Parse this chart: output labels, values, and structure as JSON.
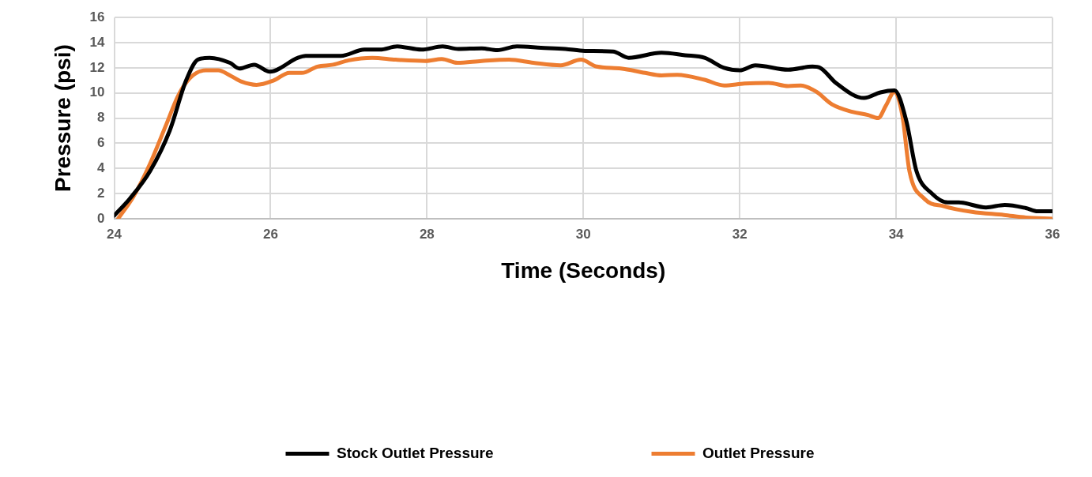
{
  "chart_data": {
    "type": "line",
    "xlabel": "Time (Seconds)",
    "ylabel": "Pressure (psi)",
    "xlim": [
      24,
      36
    ],
    "xticks": [
      24,
      26,
      28,
      30,
      32,
      34,
      36
    ],
    "ylim": [
      0,
      16
    ],
    "yticks": [
      0,
      2,
      4,
      6,
      8,
      10,
      12,
      14,
      16
    ],
    "grid": true,
    "legend": "bottom",
    "marker": "none",
    "line_style": "solid",
    "series": [
      {
        "name": "Stock Outlet Pressure",
        "color": "#000000",
        "x": [
          24,
          24.2,
          24.46,
          24.71,
          24.92,
          25.07,
          25.22,
          25.48,
          25.6,
          25.79,
          25.99,
          26.35,
          26.45,
          26.9,
          27.2,
          27.4,
          27.62,
          27.93,
          28.2,
          28.4,
          28.7,
          28.9,
          29.15,
          29.46,
          29.77,
          30.02,
          30.38,
          30.58,
          31,
          31.3,
          31.55,
          31.8,
          32,
          32.2,
          32.62,
          32.93,
          33.03,
          33.23,
          33.59,
          33.8,
          33.98,
          34.13,
          34.26,
          34.46,
          34.66,
          34.8,
          35.15,
          35.39,
          35.66,
          35.81,
          36
        ],
        "values": [
          0.25,
          1.6,
          3.8,
          7,
          11,
          12.65,
          12.8,
          12.4,
          11.95,
          12.25,
          11.7,
          12.8,
          12.95,
          12.95,
          13.45,
          13.45,
          13.7,
          13.45,
          13.7,
          13.5,
          13.55,
          13.4,
          13.7,
          13.6,
          13.5,
          13.35,
          13.3,
          12.8,
          13.2,
          13,
          12.8,
          12,
          11.8,
          12.2,
          11.85,
          12.1,
          12,
          10.8,
          9.6,
          10.05,
          10.2,
          7.8,
          3.8,
          2,
          1.3,
          1.3,
          0.9,
          1.1,
          0.85,
          0.6,
          0.6
        ]
      },
      {
        "name": "Outlet Pressure",
        "color": "#ed7d31",
        "x": [
          24.05,
          24.25,
          24.46,
          24.66,
          24.82,
          24.97,
          25.17,
          25.33,
          25.48,
          25.63,
          25.82,
          26.04,
          26.24,
          26.4,
          26.6,
          26.8,
          27,
          27.3,
          27.6,
          27.98,
          28.19,
          28.39,
          28.7,
          29.05,
          29.36,
          29.71,
          29.97,
          30.17,
          30.48,
          30.79,
          31,
          31.2,
          31.55,
          31.8,
          32.06,
          32.37,
          32.62,
          32.78,
          32.98,
          33.18,
          33.44,
          33.64,
          33.77,
          33.87,
          33.98,
          34.08,
          34.17,
          34.36,
          34.61,
          34.97,
          35.38,
          35.66,
          36
        ],
        "values": [
          0,
          1.8,
          4.4,
          7.4,
          9.8,
          11.2,
          11.8,
          11.8,
          11.4,
          10.9,
          10.65,
          11,
          11.6,
          11.6,
          12.1,
          12.25,
          12.6,
          12.8,
          12.65,
          12.55,
          12.7,
          12.4,
          12.55,
          12.65,
          12.4,
          12.2,
          12.65,
          12.1,
          11.95,
          11.6,
          11.4,
          11.45,
          11.05,
          10.6,
          10.75,
          10.8,
          10.55,
          10.6,
          10.1,
          9.1,
          8.5,
          8.25,
          8,
          9,
          10.1,
          8.2,
          3.8,
          1.6,
          1,
          0.55,
          0.3,
          0.1,
          0
        ]
      }
    ]
  }
}
